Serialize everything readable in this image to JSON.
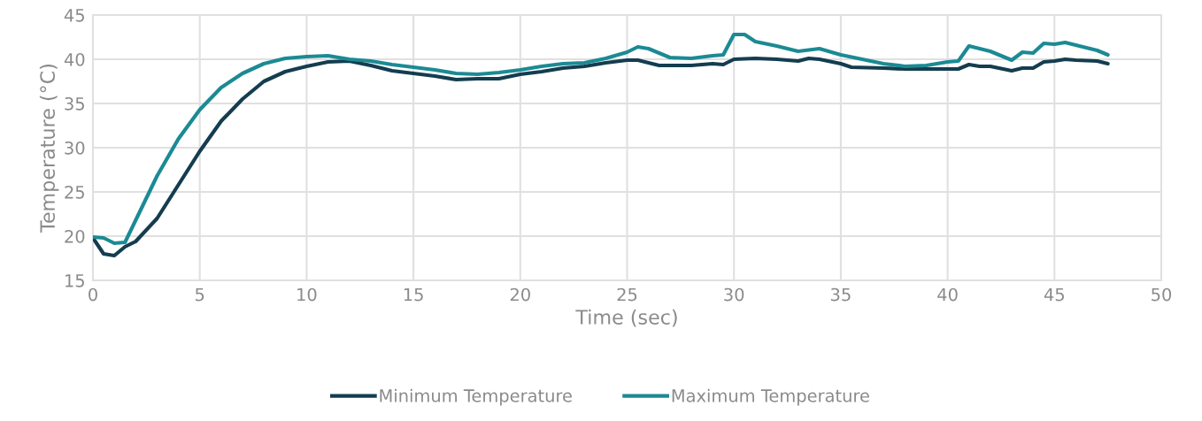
{
  "chart_data": {
    "type": "line",
    "xlabel": "Time (sec)",
    "ylabel": "Temperature (°C)",
    "xlim": [
      0,
      50
    ],
    "xticks": [
      0,
      5,
      10,
      15,
      20,
      25,
      30,
      35,
      40,
      45,
      50
    ],
    "ylim": [
      15,
      45
    ],
    "yticks": [
      15,
      20,
      25,
      30,
      35,
      40,
      45
    ],
    "grid": true,
    "legend": "bottom",
    "marker": "none",
    "line_style": "solid",
    "series": [
      {
        "name": "Minimum Temperature",
        "color": "#143d4f",
        "x": [
          0,
          0.5,
          1,
          1.5,
          2,
          3,
          4,
          5,
          6,
          7,
          8,
          9,
          10,
          11,
          12,
          13,
          14,
          15,
          16,
          17,
          18,
          19,
          20,
          21,
          22,
          23,
          24,
          25,
          25.5,
          26.5,
          28,
          29,
          29.5,
          30,
          31,
          32,
          33,
          33.5,
          34,
          35,
          35.5,
          37,
          38,
          39,
          40,
          40.5,
          41,
          41.5,
          42,
          43,
          43.5,
          44,
          44.5,
          45,
          45.5,
          46,
          47,
          47.5
        ],
        "values": [
          19.8,
          18.0,
          17.8,
          18.8,
          19.4,
          22.0,
          25.8,
          29.6,
          33.0,
          35.5,
          37.5,
          38.6,
          39.2,
          39.7,
          39.8,
          39.3,
          38.7,
          38.4,
          38.1,
          37.7,
          37.8,
          37.8,
          38.3,
          38.6,
          39.0,
          39.2,
          39.6,
          39.9,
          39.9,
          39.3,
          39.3,
          39.5,
          39.4,
          40.0,
          40.1,
          40.0,
          39.8,
          40.1,
          40.0,
          39.5,
          39.1,
          39.0,
          38.9,
          38.9,
          38.9,
          38.9,
          39.4,
          39.2,
          39.2,
          38.7,
          39.0,
          39.0,
          39.7,
          39.8,
          40.0,
          39.9,
          39.8,
          39.5
        ]
      },
      {
        "name": "Maximum Temperature",
        "color": "#1b8a94",
        "x": [
          0,
          0.5,
          1,
          1.5,
          2,
          3,
          4,
          5,
          6,
          7,
          8,
          9,
          10,
          11,
          12,
          13,
          14,
          15,
          16,
          17,
          18,
          19,
          20,
          21,
          22,
          23,
          24,
          25,
          25.5,
          26,
          27,
          28,
          29,
          29.5,
          30,
          30.5,
          31,
          32,
          33,
          34,
          35,
          36,
          37,
          38,
          39,
          39.5,
          40,
          40.5,
          41,
          42,
          43,
          43.5,
          44,
          44.5,
          45,
          45.5,
          46,
          47,
          47.5
        ],
        "values": [
          19.9,
          19.8,
          19.2,
          19.3,
          21.8,
          26.8,
          31.0,
          34.3,
          36.8,
          38.4,
          39.5,
          40.1,
          40.3,
          40.4,
          40.0,
          39.8,
          39.4,
          39.1,
          38.8,
          38.4,
          38.3,
          38.5,
          38.8,
          39.2,
          39.5,
          39.6,
          40.1,
          40.8,
          41.4,
          41.2,
          40.2,
          40.1,
          40.4,
          40.5,
          42.8,
          42.8,
          42.0,
          41.5,
          40.9,
          41.2,
          40.5,
          40.0,
          39.5,
          39.2,
          39.3,
          39.5,
          39.7,
          39.8,
          41.5,
          40.9,
          39.9,
          40.8,
          40.7,
          41.8,
          41.7,
          41.9,
          41.6,
          41.0,
          40.5
        ]
      }
    ]
  }
}
